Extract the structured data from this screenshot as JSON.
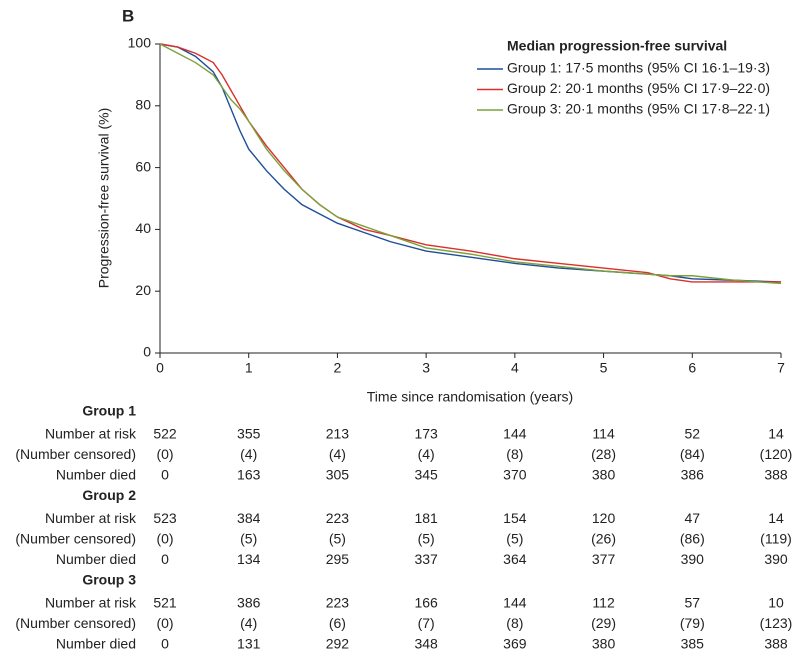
{
  "chart_data": {
    "type": "line",
    "panel": "B",
    "xlabel": "Time since randomisation (years)",
    "ylabel": "Progression-free survival (%)",
    "legend_title": "Median progression-free survival",
    "legend": "upper right",
    "xlim": [
      0,
      7
    ],
    "xticks": [
      0,
      1,
      2,
      3,
      4,
      5,
      6,
      7
    ],
    "ylim": [
      0,
      100
    ],
    "yticks": [
      0,
      20,
      40,
      60,
      80,
      100
    ],
    "x": [
      0,
      0.2,
      0.4,
      0.6,
      0.7,
      0.8,
      0.9,
      1.0,
      1.2,
      1.4,
      1.6,
      1.8,
      2.0,
      2.3,
      2.6,
      3.0,
      3.5,
      4.0,
      4.5,
      5.0,
      5.5,
      5.75,
      6.0,
      6.5,
      7.0
    ],
    "series": [
      {
        "name": "Group 1: 17·5 months (95% CI 16·1–19·3)",
        "color": "#1f4e9c",
        "values": [
          100,
          99,
          96,
          91,
          86,
          79,
          72,
          66,
          59,
          53,
          48,
          45,
          42,
          39,
          36,
          33,
          31,
          29,
          27.5,
          26.5,
          25.5,
          25,
          24,
          23.5,
          23
        ]
      },
      {
        "name": "Group 2: 20·1 months (95% CI 17·9–22·0)",
        "color": "#d9302c",
        "values": [
          100,
          99,
          97,
          94,
          90,
          85,
          80,
          75,
          67,
          60,
          53,
          48,
          44,
          40,
          38,
          35,
          33,
          30.5,
          29,
          27.5,
          26,
          24,
          23,
          23,
          23
        ]
      },
      {
        "name": "Group 3: 20·1 months (95% CI 17·8–22·1)",
        "color": "#7aa23a",
        "values": [
          100,
          97,
          94,
          90,
          86,
          82,
          79,
          75,
          66,
          59,
          53,
          48,
          44,
          41,
          38,
          34,
          32,
          29.5,
          28,
          26.5,
          25.5,
          25,
          25,
          23.5,
          22.5
        ]
      }
    ],
    "risk_table": [
      {
        "name": "Group 1",
        "rows": [
          {
            "label": "Number at risk",
            "values": [
              522,
              355,
              213,
              173,
              144,
              114,
              52,
              14
            ]
          },
          {
            "label": "(Number censored)",
            "values": [
              "(0)",
              "(4)",
              "(4)",
              "(4)",
              "(8)",
              "(28)",
              "(84)",
              "(120)"
            ]
          },
          {
            "label": "Number died",
            "values": [
              0,
              163,
              305,
              345,
              370,
              380,
              386,
              388
            ]
          }
        ]
      },
      {
        "name": "Group 2",
        "rows": [
          {
            "label": "Number at risk",
            "values": [
              523,
              384,
              223,
              181,
              154,
              120,
              47,
              14
            ]
          },
          {
            "label": "(Number censored)",
            "values": [
              "(0)",
              "(5)",
              "(5)",
              "(5)",
              "(5)",
              "(26)",
              "(86)",
              "(119)"
            ]
          },
          {
            "label": "Number died",
            "values": [
              0,
              134,
              295,
              337,
              364,
              377,
              390,
              390
            ]
          }
        ]
      },
      {
        "name": "Group 3",
        "rows": [
          {
            "label": "Number at risk",
            "values": [
              521,
              386,
              223,
              166,
              144,
              112,
              57,
              10
            ]
          },
          {
            "label": "(Number censored)",
            "values": [
              "(0)",
              "(4)",
              "(6)",
              "(7)",
              "(8)",
              "(29)",
              "(79)",
              "(123)"
            ]
          },
          {
            "label": "Number died",
            "values": [
              0,
              131,
              292,
              348,
              369,
              380,
              385,
              388
            ]
          }
        ]
      }
    ]
  }
}
